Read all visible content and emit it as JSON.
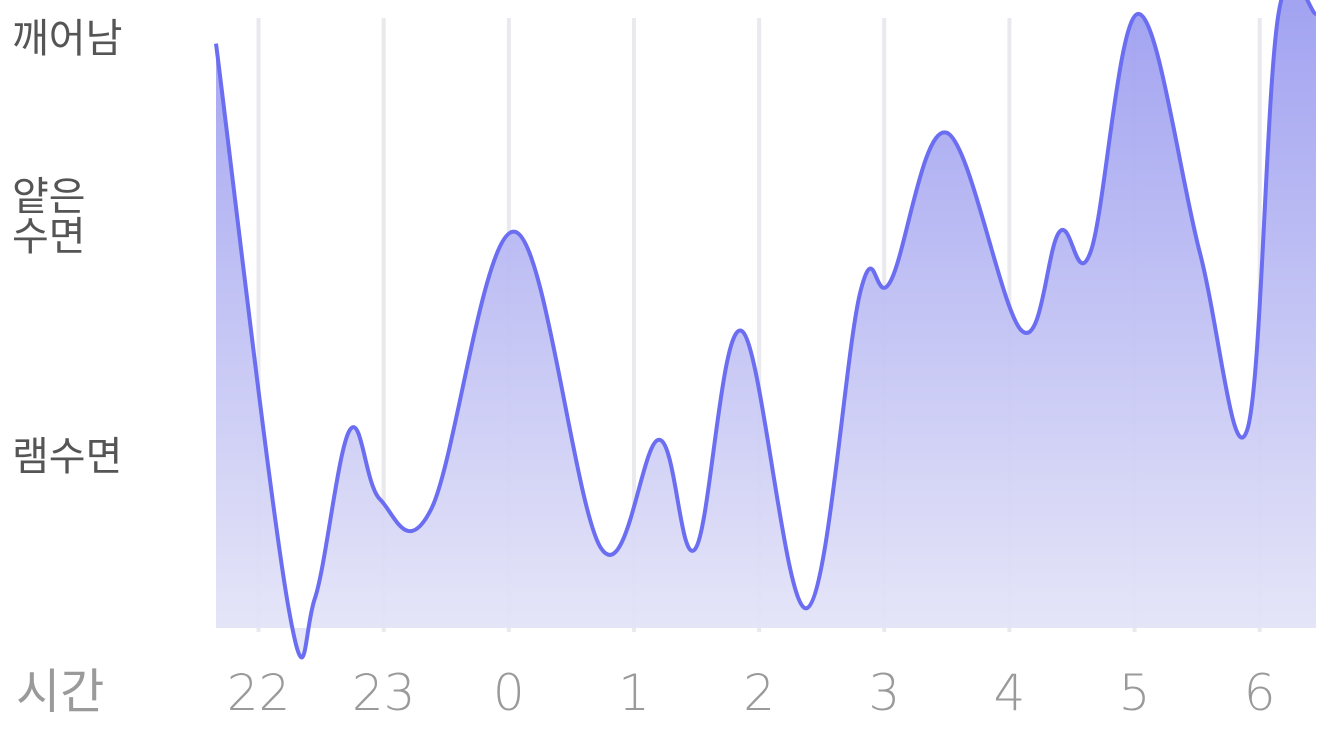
{
  "chart_data": {
    "type": "area",
    "xlabel": "시간",
    "y_levels": [
      {
        "key": "awake",
        "label_lines": [
          "깨어남"
        ],
        "value": 3
      },
      {
        "key": "light",
        "label_lines": [
          "얕은",
          "수면"
        ],
        "value": 2
      },
      {
        "key": "rem",
        "label_lines": [
          "램수면"
        ],
        "value": 1
      }
    ],
    "ylim": [
      0,
      3.15
    ],
    "xlim": [
      21.66,
      6.45
    ],
    "x_ticks": [
      {
        "label": "22",
        "hour": 22
      },
      {
        "label": "23",
        "hour": 23
      },
      {
        "label": "0",
        "hour": 24
      },
      {
        "label": "1",
        "hour": 25
      },
      {
        "label": "2",
        "hour": 26
      },
      {
        "label": "3",
        "hour": 27
      },
      {
        "label": "4",
        "hour": 28
      },
      {
        "label": "5",
        "hour": 29
      },
      {
        "label": "6",
        "hour": 30
      }
    ],
    "series": [
      {
        "x_hours": [
          21.66,
          22.24,
          22.45,
          22.73,
          22.97,
          23.38,
          24.05,
          24.74,
          25.2,
          25.49,
          25.86,
          26.38,
          26.81,
          27.05,
          27.5,
          28.1,
          28.4,
          28.65,
          29.03,
          29.52,
          29.9,
          30.15,
          30.45
        ],
        "values": [
          2.95,
          0.1,
          0.15,
          1.0,
          0.65,
          0.6,
          2.0,
          0.4,
          0.95,
          0.4,
          1.5,
          0.1,
          1.7,
          1.75,
          2.5,
          1.5,
          2.0,
          1.9,
          3.1,
          1.9,
          1.0,
          3.1,
          3.1
        ]
      }
    ],
    "colors": {
      "line": "#6b6ef0",
      "fill_top": "#9b9cf0",
      "fill_bottom": "#e7e7f8",
      "grid": "#e9e9ee"
    },
    "grid": true,
    "legend": "none"
  }
}
